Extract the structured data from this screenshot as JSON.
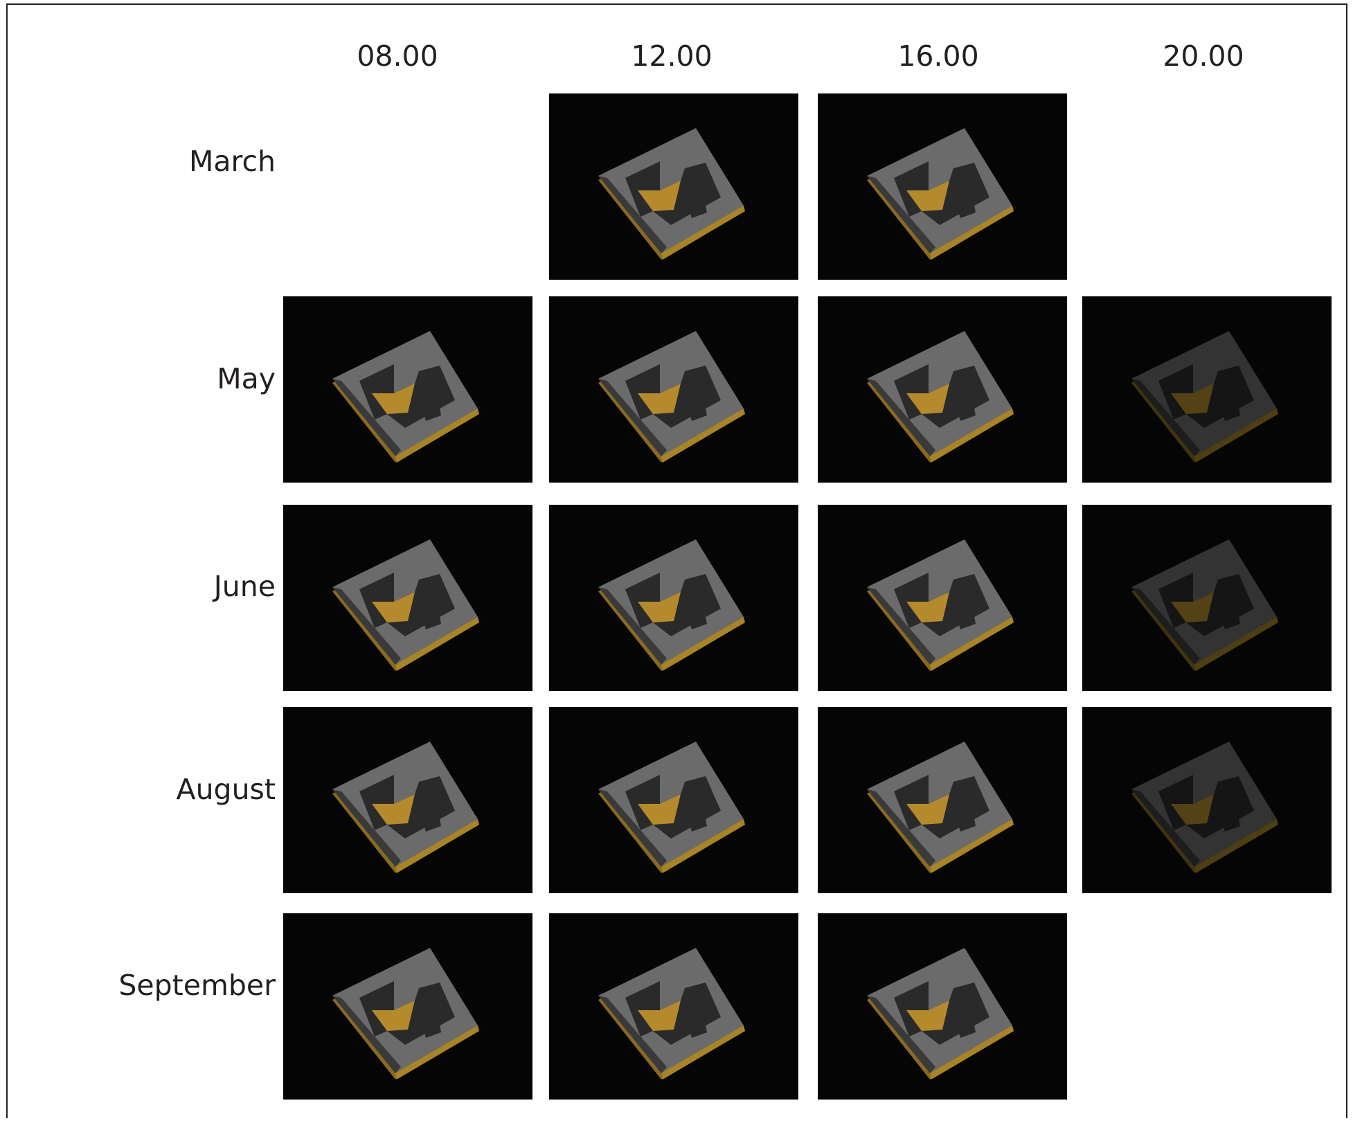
{
  "columns": [
    "08.00",
    "12.00",
    "16.00",
    "20.00"
  ],
  "rows": [
    "March",
    "May",
    "June",
    "August",
    "September"
  ]
}
